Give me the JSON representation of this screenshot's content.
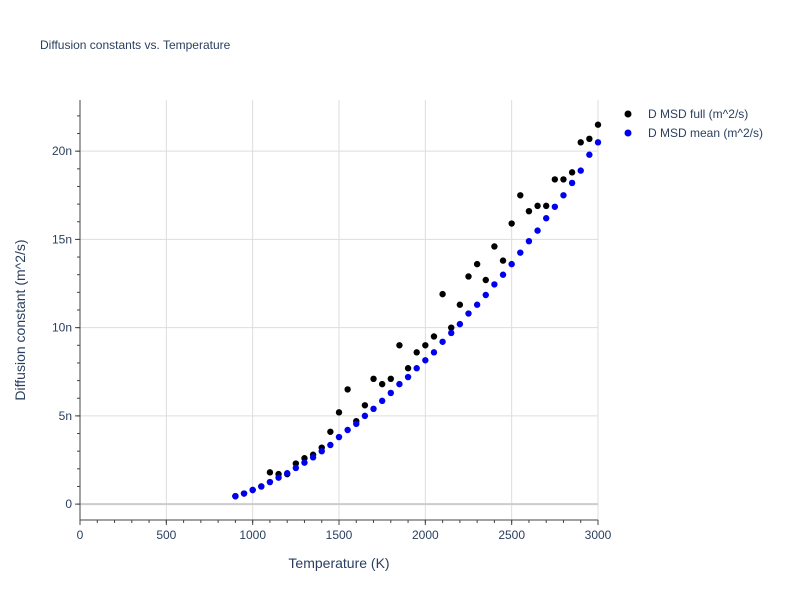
{
  "chart_data": {
    "type": "scatter",
    "title": "Diffusion constants vs. Temperature",
    "xlabel": "Temperature (K)",
    "ylabel": "Diffusion constant (m^2/s)",
    "xlim": [
      0,
      3000
    ],
    "ylim": [
      -0.9,
      22.9
    ],
    "x_ticks": [
      0,
      500,
      1000,
      1500,
      2000,
      2500,
      3000
    ],
    "x_tick_labels": [
      "0",
      "500",
      "1000",
      "1500",
      "2000",
      "2500",
      "3000"
    ],
    "y_ticks": [
      0,
      5,
      10,
      15,
      20
    ],
    "y_tick_labels": [
      "0",
      "5n",
      "10n",
      "15n",
      "20n"
    ],
    "grid": true,
    "legend_position": "top-right",
    "series": [
      {
        "name": "D MSD full (m^2/s)",
        "color": "#000000",
        "x": [
          900,
          950,
          1000,
          1050,
          1100,
          1150,
          1200,
          1250,
          1300,
          1350,
          1400,
          1450,
          1500,
          1550,
          1600,
          1650,
          1700,
          1750,
          1800,
          1850,
          1900,
          1950,
          2000,
          2050,
          2100,
          2150,
          2200,
          2250,
          2300,
          2350,
          2400,
          2450,
          2500,
          2550,
          2600,
          2650,
          2700,
          2750,
          2800,
          2850,
          2900,
          2950,
          3000
        ],
        "y": [
          0.45,
          0.6,
          0.8,
          1.0,
          1.8,
          1.7,
          1.7,
          2.3,
          2.6,
          2.8,
          3.2,
          4.1,
          5.2,
          6.5,
          4.7,
          5.6,
          7.1,
          6.8,
          7.1,
          9.0,
          7.7,
          8.6,
          9.0,
          9.5,
          11.9,
          10.0,
          11.3,
          12.9,
          13.6,
          12.7,
          14.6,
          13.8,
          15.9,
          17.5,
          16.6,
          16.9,
          16.9,
          18.4,
          18.4,
          18.8,
          20.5,
          20.7,
          21.5
        ]
      },
      {
        "name": "D MSD mean (m^2/s)",
        "color": "#0000ee",
        "x": [
          900,
          950,
          1000,
          1050,
          1100,
          1150,
          1200,
          1250,
          1300,
          1350,
          1400,
          1450,
          1500,
          1550,
          1600,
          1650,
          1700,
          1750,
          1800,
          1850,
          1900,
          1950,
          2000,
          2050,
          2100,
          2150,
          2200,
          2250,
          2300,
          2350,
          2400,
          2450,
          2500,
          2550,
          2600,
          2650,
          2700,
          2750,
          2800,
          2850,
          2900,
          2950,
          3000
        ],
        "y": [
          0.45,
          0.6,
          0.8,
          1.0,
          1.25,
          1.5,
          1.75,
          2.05,
          2.35,
          2.65,
          3.0,
          3.35,
          3.8,
          4.2,
          4.55,
          5.0,
          5.4,
          5.85,
          6.3,
          6.8,
          7.2,
          7.7,
          8.15,
          8.6,
          9.2,
          9.7,
          10.2,
          10.8,
          11.3,
          11.85,
          12.45,
          13.0,
          13.6,
          14.25,
          14.9,
          15.5,
          16.2,
          16.85,
          17.5,
          18.2,
          18.9,
          19.8,
          20.5
        ]
      }
    ]
  }
}
